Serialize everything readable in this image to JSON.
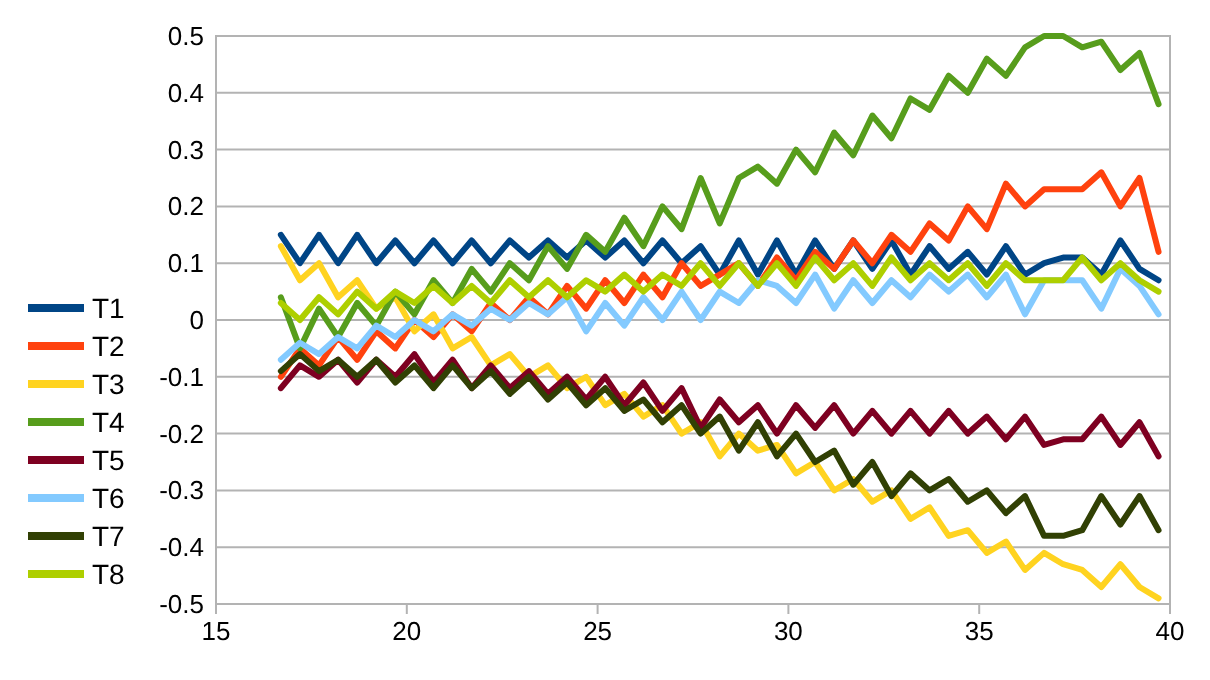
{
  "chart_data": {
    "type": "line",
    "x": [
      16.7,
      17.2,
      17.7,
      18.2,
      18.7,
      19.2,
      19.7,
      20.2,
      20.7,
      21.2,
      21.7,
      22.2,
      22.7,
      23.2,
      23.7,
      24.2,
      24.7,
      25.2,
      25.7,
      26.2,
      26.7,
      27.2,
      27.7,
      28.2,
      28.7,
      29.2,
      29.7,
      30.2,
      30.7,
      31.2,
      31.7,
      32.2,
      32.7,
      33.2,
      33.7,
      34.2,
      34.7,
      35.2,
      35.7,
      36.2,
      36.7,
      37.2,
      37.7,
      38.2,
      38.7,
      39.2,
      39.7
    ],
    "xlim": [
      15,
      40
    ],
    "xticks": [
      15,
      20,
      25,
      30,
      35,
      40
    ],
    "ylim": [
      -0.5,
      0.5
    ],
    "yticks": [
      -0.5,
      -0.4,
      -0.3,
      -0.2,
      -0.1,
      0,
      0.1,
      0.2,
      0.3,
      0.4,
      0.5
    ],
    "grid": "y",
    "legend": "left",
    "marker": "none",
    "line_style": "solid",
    "series": [
      {
        "name": "T1",
        "color": "#004586",
        "values": [
          0.15,
          0.1,
          0.15,
          0.1,
          0.15,
          0.1,
          0.14,
          0.1,
          0.14,
          0.1,
          0.14,
          0.1,
          0.14,
          0.11,
          0.14,
          0.11,
          0.14,
          0.11,
          0.14,
          0.1,
          0.14,
          0.1,
          0.13,
          0.08,
          0.14,
          0.08,
          0.14,
          0.08,
          0.14,
          0.09,
          0.14,
          0.09,
          0.14,
          0.08,
          0.13,
          0.09,
          0.12,
          0.08,
          0.13,
          0.08,
          0.1,
          0.11,
          0.11,
          0.08,
          0.14,
          0.09,
          0.07
        ]
      },
      {
        "name": "T2",
        "color": "#ff420e",
        "values": [
          -0.1,
          -0.05,
          -0.08,
          -0.03,
          -0.07,
          -0.02,
          -0.05,
          0,
          -0.03,
          0.01,
          -0.02,
          0.03,
          0,
          0.04,
          0.01,
          0.06,
          0.02,
          0.07,
          0.03,
          0.08,
          0.04,
          0.1,
          0.06,
          0.08,
          0.1,
          0.06,
          0.11,
          0.07,
          0.12,
          0.09,
          0.14,
          0.1,
          0.15,
          0.12,
          0.17,
          0.14,
          0.2,
          0.16,
          0.24,
          0.2,
          0.23,
          0.23,
          0.23,
          0.26,
          0.2,
          0.25,
          0.12
        ]
      },
      {
        "name": "T3",
        "color": "#ffd320",
        "values": [
          0.13,
          0.07,
          0.1,
          0.04,
          0.07,
          0.02,
          0.04,
          -0.02,
          0.01,
          -0.05,
          -0.03,
          -0.08,
          -0.06,
          -0.1,
          -0.08,
          -0.12,
          -0.1,
          -0.15,
          -0.13,
          -0.17,
          -0.15,
          -0.2,
          -0.18,
          -0.24,
          -0.2,
          -0.23,
          -0.22,
          -0.27,
          -0.25,
          -0.3,
          -0.28,
          -0.32,
          -0.3,
          -0.35,
          -0.33,
          -0.38,
          -0.37,
          -0.41,
          -0.39,
          -0.44,
          -0.41,
          -0.43,
          -0.44,
          -0.47,
          -0.43,
          -0.47,
          -0.49
        ]
      },
      {
        "name": "T4",
        "color": "#579d1c",
        "values": [
          0.04,
          -0.05,
          0.02,
          -0.03,
          0.03,
          -0.01,
          0.05,
          0.01,
          0.07,
          0.03,
          0.09,
          0.05,
          0.1,
          0.07,
          0.13,
          0.09,
          0.15,
          0.12,
          0.18,
          0.13,
          0.2,
          0.16,
          0.25,
          0.17,
          0.25,
          0.27,
          0.24,
          0.3,
          0.26,
          0.33,
          0.29,
          0.36,
          0.32,
          0.39,
          0.37,
          0.43,
          0.4,
          0.46,
          0.43,
          0.48,
          0.5,
          0.5,
          0.48,
          0.49,
          0.44,
          0.47,
          0.38
        ]
      },
      {
        "name": "T5",
        "color": "#7e0021",
        "values": [
          -0.12,
          -0.08,
          -0.1,
          -0.07,
          -0.11,
          -0.07,
          -0.1,
          -0.06,
          -0.11,
          -0.07,
          -0.12,
          -0.08,
          -0.12,
          -0.09,
          -0.13,
          -0.1,
          -0.14,
          -0.1,
          -0.15,
          -0.11,
          -0.16,
          -0.12,
          -0.19,
          -0.14,
          -0.18,
          -0.15,
          -0.2,
          -0.15,
          -0.19,
          -0.15,
          -0.2,
          -0.16,
          -0.2,
          -0.16,
          -0.2,
          -0.16,
          -0.2,
          -0.17,
          -0.21,
          -0.17,
          -0.22,
          -0.21,
          -0.21,
          -0.17,
          -0.22,
          -0.18,
          -0.24
        ]
      },
      {
        "name": "T6",
        "color": "#83caff",
        "values": [
          -0.07,
          -0.04,
          -0.06,
          -0.03,
          -0.05,
          -0.01,
          -0.03,
          0,
          -0.02,
          0.01,
          -0.01,
          0.02,
          0,
          0.03,
          0.01,
          0.04,
          -0.02,
          0.03,
          -0.01,
          0.04,
          0,
          0.05,
          0,
          0.05,
          0.03,
          0.07,
          0.06,
          0.03,
          0.08,
          0.02,
          0.07,
          0.03,
          0.07,
          0.04,
          0.08,
          0.05,
          0.08,
          0.04,
          0.08,
          0.01,
          0.07,
          0.07,
          0.07,
          0.02,
          0.09,
          0.06,
          0.01
        ]
      },
      {
        "name": "T7",
        "color": "#314004",
        "values": [
          -0.09,
          -0.06,
          -0.09,
          -0.07,
          -0.1,
          -0.07,
          -0.11,
          -0.08,
          -0.12,
          -0.08,
          -0.12,
          -0.09,
          -0.13,
          -0.1,
          -0.14,
          -0.11,
          -0.15,
          -0.12,
          -0.16,
          -0.14,
          -0.18,
          -0.15,
          -0.2,
          -0.17,
          -0.23,
          -0.18,
          -0.24,
          -0.2,
          -0.25,
          -0.23,
          -0.29,
          -0.25,
          -0.31,
          -0.27,
          -0.3,
          -0.28,
          -0.32,
          -0.3,
          -0.34,
          -0.31,
          -0.38,
          -0.38,
          -0.37,
          -0.31,
          -0.36,
          -0.31,
          -0.37
        ]
      },
      {
        "name": "T8",
        "color": "#aecf00",
        "values": [
          0.03,
          0,
          0.04,
          0.01,
          0.05,
          0.02,
          0.05,
          0.03,
          0.06,
          0.03,
          0.06,
          0.03,
          0.07,
          0.04,
          0.07,
          0.04,
          0.07,
          0.05,
          0.08,
          0.05,
          0.08,
          0.06,
          0.1,
          0.06,
          0.1,
          0.06,
          0.1,
          0.06,
          0.11,
          0.07,
          0.1,
          0.06,
          0.11,
          0.07,
          0.1,
          0.07,
          0.1,
          0.06,
          0.1,
          0.07,
          0.07,
          0.07,
          0.11,
          0.07,
          0.1,
          0.07,
          0.05
        ]
      }
    ]
  }
}
